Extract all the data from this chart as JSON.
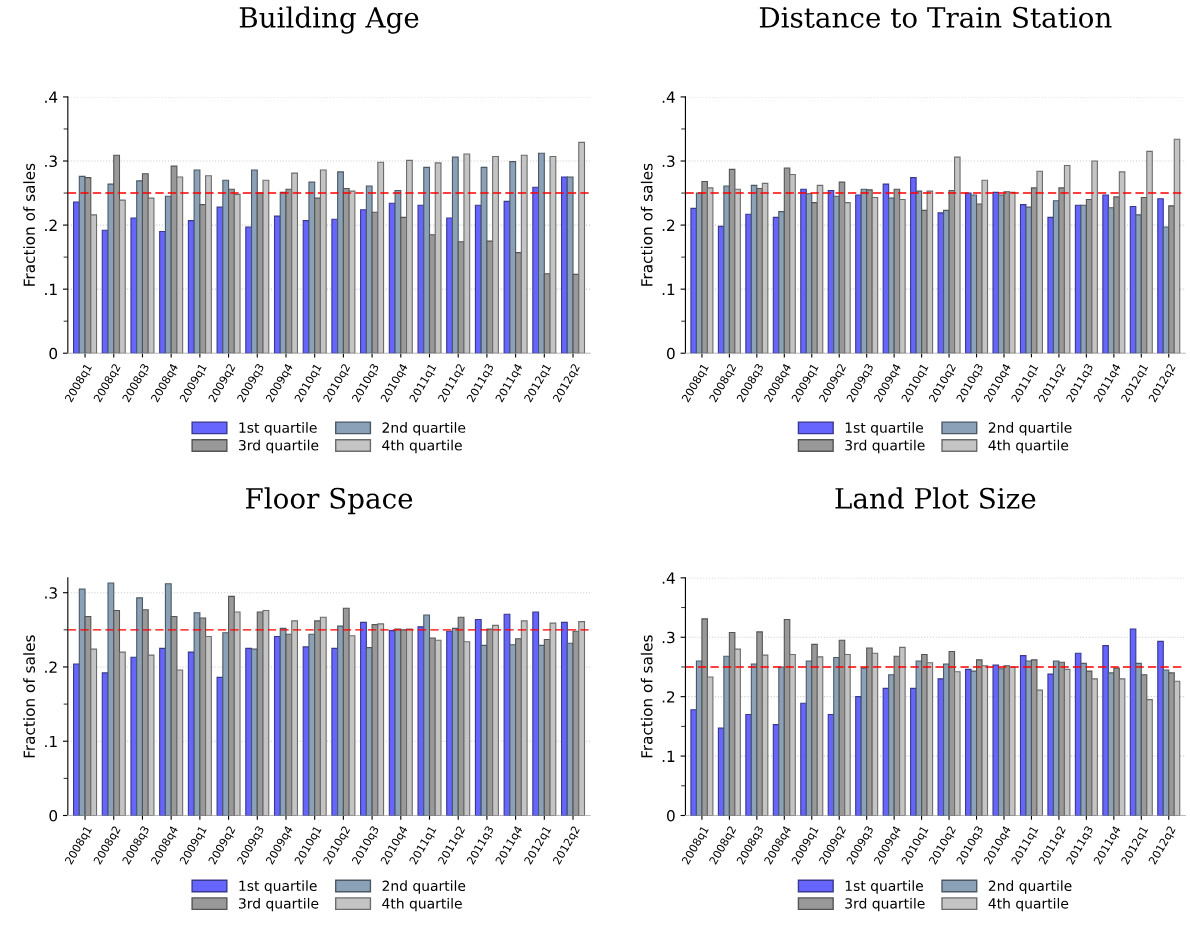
{
  "chart_data": [
    {
      "type": "bar",
      "title": "Building Age",
      "ylabel": "Fraction of sales",
      "categories": [
        "2008q1",
        "2008q2",
        "2008q3",
        "2008q4",
        "2009q1",
        "2009q2",
        "2009q3",
        "2009q4",
        "2010q1",
        "2010q2",
        "2010q3",
        "2010q4",
        "2011q1",
        "2011q2",
        "2011q3",
        "2011q4",
        "2012q1",
        "2012q2"
      ],
      "series": [
        {
          "name": "1st quartile",
          "color": "#6666ff",
          "values": [
            0.236,
            0.192,
            0.211,
            0.19,
            0.207,
            0.228,
            0.197,
            0.214,
            0.207,
            0.209,
            0.224,
            0.234,
            0.231,
            0.211,
            0.231,
            0.237,
            0.259,
            0.275
          ]
        },
        {
          "name": "2nd quartile",
          "color": "#8ba1b7",
          "values": [
            0.276,
            0.264,
            0.269,
            0.245,
            0.286,
            0.27,
            0.286,
            0.251,
            0.267,
            0.283,
            0.261,
            0.254,
            0.29,
            0.306,
            0.29,
            0.299,
            0.312,
            0.275
          ]
        },
        {
          "name": "3rd quartile",
          "color": "#999999",
          "values": [
            0.274,
            0.309,
            0.28,
            0.292,
            0.232,
            0.256,
            0.25,
            0.256,
            0.242,
            0.257,
            0.22,
            0.212,
            0.185,
            0.174,
            0.175,
            0.157,
            0.124,
            0.123
          ]
        },
        {
          "name": "4th quartile",
          "color": "#c4c4c4",
          "values": [
            0.216,
            0.239,
            0.242,
            0.275,
            0.277,
            0.248,
            0.27,
            0.281,
            0.286,
            0.253,
            0.298,
            0.301,
            0.297,
            0.311,
            0.307,
            0.309,
            0.307,
            0.329
          ]
        }
      ],
      "ylim": [
        0,
        0.4
      ],
      "yticks": [
        {
          "value": 0,
          "label": "0"
        },
        {
          "value": 0.05,
          "label": null
        },
        {
          "value": 0.1,
          "label": ".1"
        },
        {
          "value": 0.15,
          "label": null
        },
        {
          "value": 0.2,
          "label": ".2"
        },
        {
          "value": 0.25,
          "label": null
        },
        {
          "value": 0.3,
          "label": ".3"
        },
        {
          "value": 0.35,
          "label": null
        },
        {
          "value": 0.4,
          "label": ".4"
        }
      ],
      "grid": "y",
      "legend": "bottom",
      "ref_lines": [
        {
          "axis": "y",
          "value": 0.25,
          "color": "#ff0000",
          "line_style": "dashed"
        }
      ]
    },
    {
      "type": "bar",
      "title": "Distance to Train Station",
      "ylabel": "Fraction of sales",
      "categories": [
        "2008q1",
        "2008q2",
        "2008q3",
        "2008q4",
        "2009q1",
        "2009q2",
        "2009q3",
        "2009q4",
        "2010q1",
        "2010q2",
        "2010q3",
        "2010q4",
        "2011q1",
        "2011q2",
        "2011q3",
        "2011q4",
        "2012q1",
        "2012q2"
      ],
      "series": [
        {
          "name": "1st quartile",
          "color": "#6666ff",
          "values": [
            0.226,
            0.198,
            0.217,
            0.212,
            0.256,
            0.254,
            0.247,
            0.264,
            0.274,
            0.219,
            0.25,
            0.251,
            0.232,
            0.212,
            0.231,
            0.247,
            0.229,
            0.241
          ]
        },
        {
          "name": "2nd quartile",
          "color": "#8ba1b7",
          "values": [
            0.25,
            0.261,
            0.262,
            0.221,
            0.249,
            0.245,
            0.256,
            0.242,
            0.253,
            0.223,
            0.247,
            0.247,
            0.228,
            0.238,
            0.231,
            0.227,
            0.216,
            0.197
          ]
        },
        {
          "name": "3rd quartile",
          "color": "#999999",
          "values": [
            0.268,
            0.287,
            0.257,
            0.289,
            0.235,
            0.267,
            0.255,
            0.256,
            0.223,
            0.254,
            0.233,
            0.252,
            0.258,
            0.258,
            0.24,
            0.244,
            0.243,
            0.23
          ]
        },
        {
          "name": "4th quartile",
          "color": "#c4c4c4",
          "values": [
            0.258,
            0.256,
            0.265,
            0.279,
            0.262,
            0.235,
            0.243,
            0.24,
            0.253,
            0.306,
            0.27,
            0.251,
            0.284,
            0.293,
            0.3,
            0.283,
            0.315,
            0.334
          ]
        }
      ],
      "ylim": [
        0,
        0.4
      ],
      "yticks": [
        {
          "value": 0,
          "label": "0"
        },
        {
          "value": 0.05,
          "label": null
        },
        {
          "value": 0.1,
          "label": ".1"
        },
        {
          "value": 0.15,
          "label": null
        },
        {
          "value": 0.2,
          "label": ".2"
        },
        {
          "value": 0.25,
          "label": null
        },
        {
          "value": 0.3,
          "label": ".3"
        },
        {
          "value": 0.35,
          "label": null
        },
        {
          "value": 0.4,
          "label": ".4"
        }
      ],
      "grid": "y",
      "legend": "bottom",
      "ref_lines": [
        {
          "axis": "y",
          "value": 0.25,
          "color": "#ff0000",
          "line_style": "dashed"
        }
      ]
    },
    {
      "type": "bar",
      "title": "Floor Space",
      "ylabel": "Fraction of sales",
      "categories": [
        "2008q1",
        "2008q2",
        "2008q3",
        "2008q4",
        "2009q1",
        "2009q2",
        "2009q3",
        "2009q4",
        "2010q1",
        "2010q2",
        "2010q3",
        "2010q4",
        "2011q1",
        "2011q2",
        "2011q3",
        "2011q4",
        "2012q1",
        "2012q2"
      ],
      "series": [
        {
          "name": "1st quartile",
          "color": "#6666ff",
          "values": [
            0.204,
            0.192,
            0.213,
            0.225,
            0.22,
            0.186,
            0.225,
            0.241,
            0.227,
            0.225,
            0.26,
            0.249,
            0.254,
            0.248,
            0.264,
            0.271,
            0.274,
            0.26
          ]
        },
        {
          "name": "2nd quartile",
          "color": "#8ba1b7",
          "values": [
            0.305,
            0.313,
            0.293,
            0.312,
            0.273,
            0.246,
            0.224,
            0.252,
            0.244,
            0.255,
            0.226,
            0.251,
            0.27,
            0.252,
            0.229,
            0.23,
            0.229,
            0.232
          ]
        },
        {
          "name": "3rd quartile",
          "color": "#999999",
          "values": [
            0.268,
            0.276,
            0.277,
            0.268,
            0.266,
            0.295,
            0.274,
            0.244,
            0.262,
            0.279,
            0.257,
            0.25,
            0.239,
            0.267,
            0.251,
            0.238,
            0.237,
            0.248
          ]
        },
        {
          "name": "4th quartile",
          "color": "#c4c4c4",
          "values": [
            0.224,
            0.22,
            0.216,
            0.196,
            0.241,
            0.274,
            0.276,
            0.262,
            0.267,
            0.242,
            0.258,
            0.251,
            0.236,
            0.234,
            0.256,
            0.262,
            0.259,
            0.261
          ]
        }
      ],
      "ylim": [
        0,
        0.32
      ],
      "yticks": [
        {
          "value": 0,
          "label": "0"
        },
        {
          "value": 0.05,
          "label": null
        },
        {
          "value": 0.1,
          "label": ".1"
        },
        {
          "value": 0.15,
          "label": null
        },
        {
          "value": 0.2,
          "label": ".2"
        },
        {
          "value": 0.25,
          "label": null
        },
        {
          "value": 0.3,
          "label": ".3"
        }
      ],
      "grid": "y",
      "legend": "bottom",
      "ref_lines": [
        {
          "axis": "y",
          "value": 0.25,
          "color": "#ff0000",
          "line_style": "dashed"
        }
      ]
    },
    {
      "type": "bar",
      "title": "Land Plot Size",
      "ylabel": "Fraction of sales",
      "categories": [
        "2008q1",
        "2008q2",
        "2008q3",
        "2008q4",
        "2009q1",
        "2009q2",
        "2009q3",
        "2009q4",
        "2010q1",
        "2010q2",
        "2010q3",
        "2010q4",
        "2011q1",
        "2011q2",
        "2011q3",
        "2011q4",
        "2012q1",
        "2012q2"
      ],
      "series": [
        {
          "name": "1st quartile",
          "color": "#6666ff",
          "values": [
            0.178,
            0.147,
            0.17,
            0.153,
            0.189,
            0.17,
            0.2,
            0.214,
            0.214,
            0.23,
            0.246,
            0.253,
            0.269,
            0.238,
            0.273,
            0.286,
            0.314,
            0.293
          ]
        },
        {
          "name": "2nd quartile",
          "color": "#8ba1b7",
          "values": [
            0.26,
            0.268,
            0.255,
            0.25,
            0.26,
            0.266,
            0.248,
            0.237,
            0.26,
            0.255,
            0.243,
            0.247,
            0.26,
            0.26,
            0.256,
            0.24,
            0.256,
            0.245
          ]
        },
        {
          "name": "3rd quartile",
          "color": "#999999",
          "values": [
            0.331,
            0.308,
            0.309,
            0.33,
            0.288,
            0.295,
            0.282,
            0.268,
            0.271,
            0.276,
            0.262,
            0.252,
            0.262,
            0.258,
            0.243,
            0.248,
            0.237,
            0.24
          ]
        },
        {
          "name": "4th quartile",
          "color": "#c4c4c4",
          "values": [
            0.233,
            0.28,
            0.27,
            0.271,
            0.267,
            0.271,
            0.273,
            0.283,
            0.257,
            0.242,
            0.252,
            0.25,
            0.211,
            0.246,
            0.23,
            0.23,
            0.195,
            0.226
          ]
        }
      ],
      "ylim": [
        0,
        0.4
      ],
      "yticks": [
        {
          "value": 0,
          "label": "0"
        },
        {
          "value": 0.05,
          "label": null
        },
        {
          "value": 0.1,
          "label": ".1"
        },
        {
          "value": 0.15,
          "label": null
        },
        {
          "value": 0.2,
          "label": ".2"
        },
        {
          "value": 0.25,
          "label": null
        },
        {
          "value": 0.3,
          "label": ".3"
        },
        {
          "value": 0.35,
          "label": null
        },
        {
          "value": 0.4,
          "label": ".4"
        }
      ],
      "grid": "y",
      "legend": "bottom",
      "ref_lines": [
        {
          "axis": "y",
          "value": 0.25,
          "color": "#ff0000",
          "line_style": "dashed"
        }
      ]
    }
  ]
}
